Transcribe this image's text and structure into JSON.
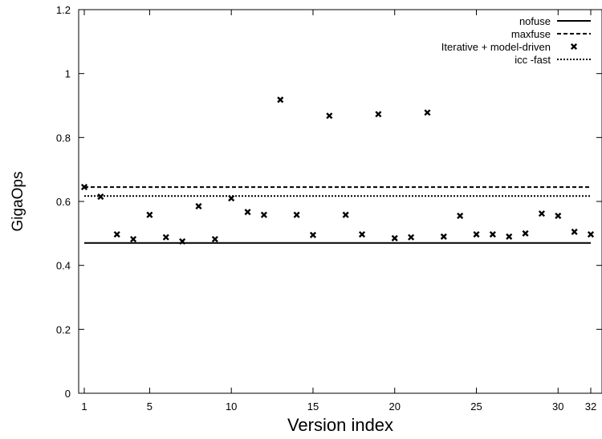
{
  "chart_data": {
    "type": "scatter",
    "xlabel": "Version index",
    "ylabel": "GigaOps",
    "xlim": [
      0,
      32
    ],
    "ylim": [
      0,
      1.2
    ],
    "x_ticks": [
      1,
      5,
      10,
      15,
      20,
      25,
      30,
      32
    ],
    "y_ticks": [
      0,
      0.2,
      0.4,
      0.6,
      0.8,
      1,
      1.2
    ],
    "legend_position": "top-right",
    "grid": false,
    "series": [
      {
        "name": "nofuse",
        "kind": "hline",
        "style": "solid",
        "value": 0.47
      },
      {
        "name": "maxfuse",
        "kind": "hline",
        "style": "dashed",
        "value": 0.645
      },
      {
        "name": "Iterative + model-driven",
        "kind": "points",
        "marker": "x",
        "x": [
          1,
          2,
          3,
          4,
          5,
          6,
          7,
          8,
          9,
          10,
          11,
          12,
          13,
          14,
          15,
          16,
          17,
          18,
          19,
          20,
          21,
          22,
          23,
          24,
          25,
          26,
          27,
          28,
          29,
          30,
          31,
          32
        ],
        "y": [
          0.645,
          0.615,
          0.497,
          0.482,
          0.558,
          0.488,
          0.475,
          0.585,
          0.482,
          0.61,
          0.567,
          0.558,
          0.918,
          0.558,
          0.495,
          0.868,
          0.558,
          0.497,
          0.873,
          0.485,
          0.488,
          0.878,
          0.49,
          0.555,
          0.497,
          0.497,
          0.49,
          0.5,
          0.562,
          0.555,
          0.505,
          0.497
        ]
      },
      {
        "name": "icc -fast",
        "kind": "hline",
        "style": "dotted",
        "value": 0.617
      }
    ]
  }
}
